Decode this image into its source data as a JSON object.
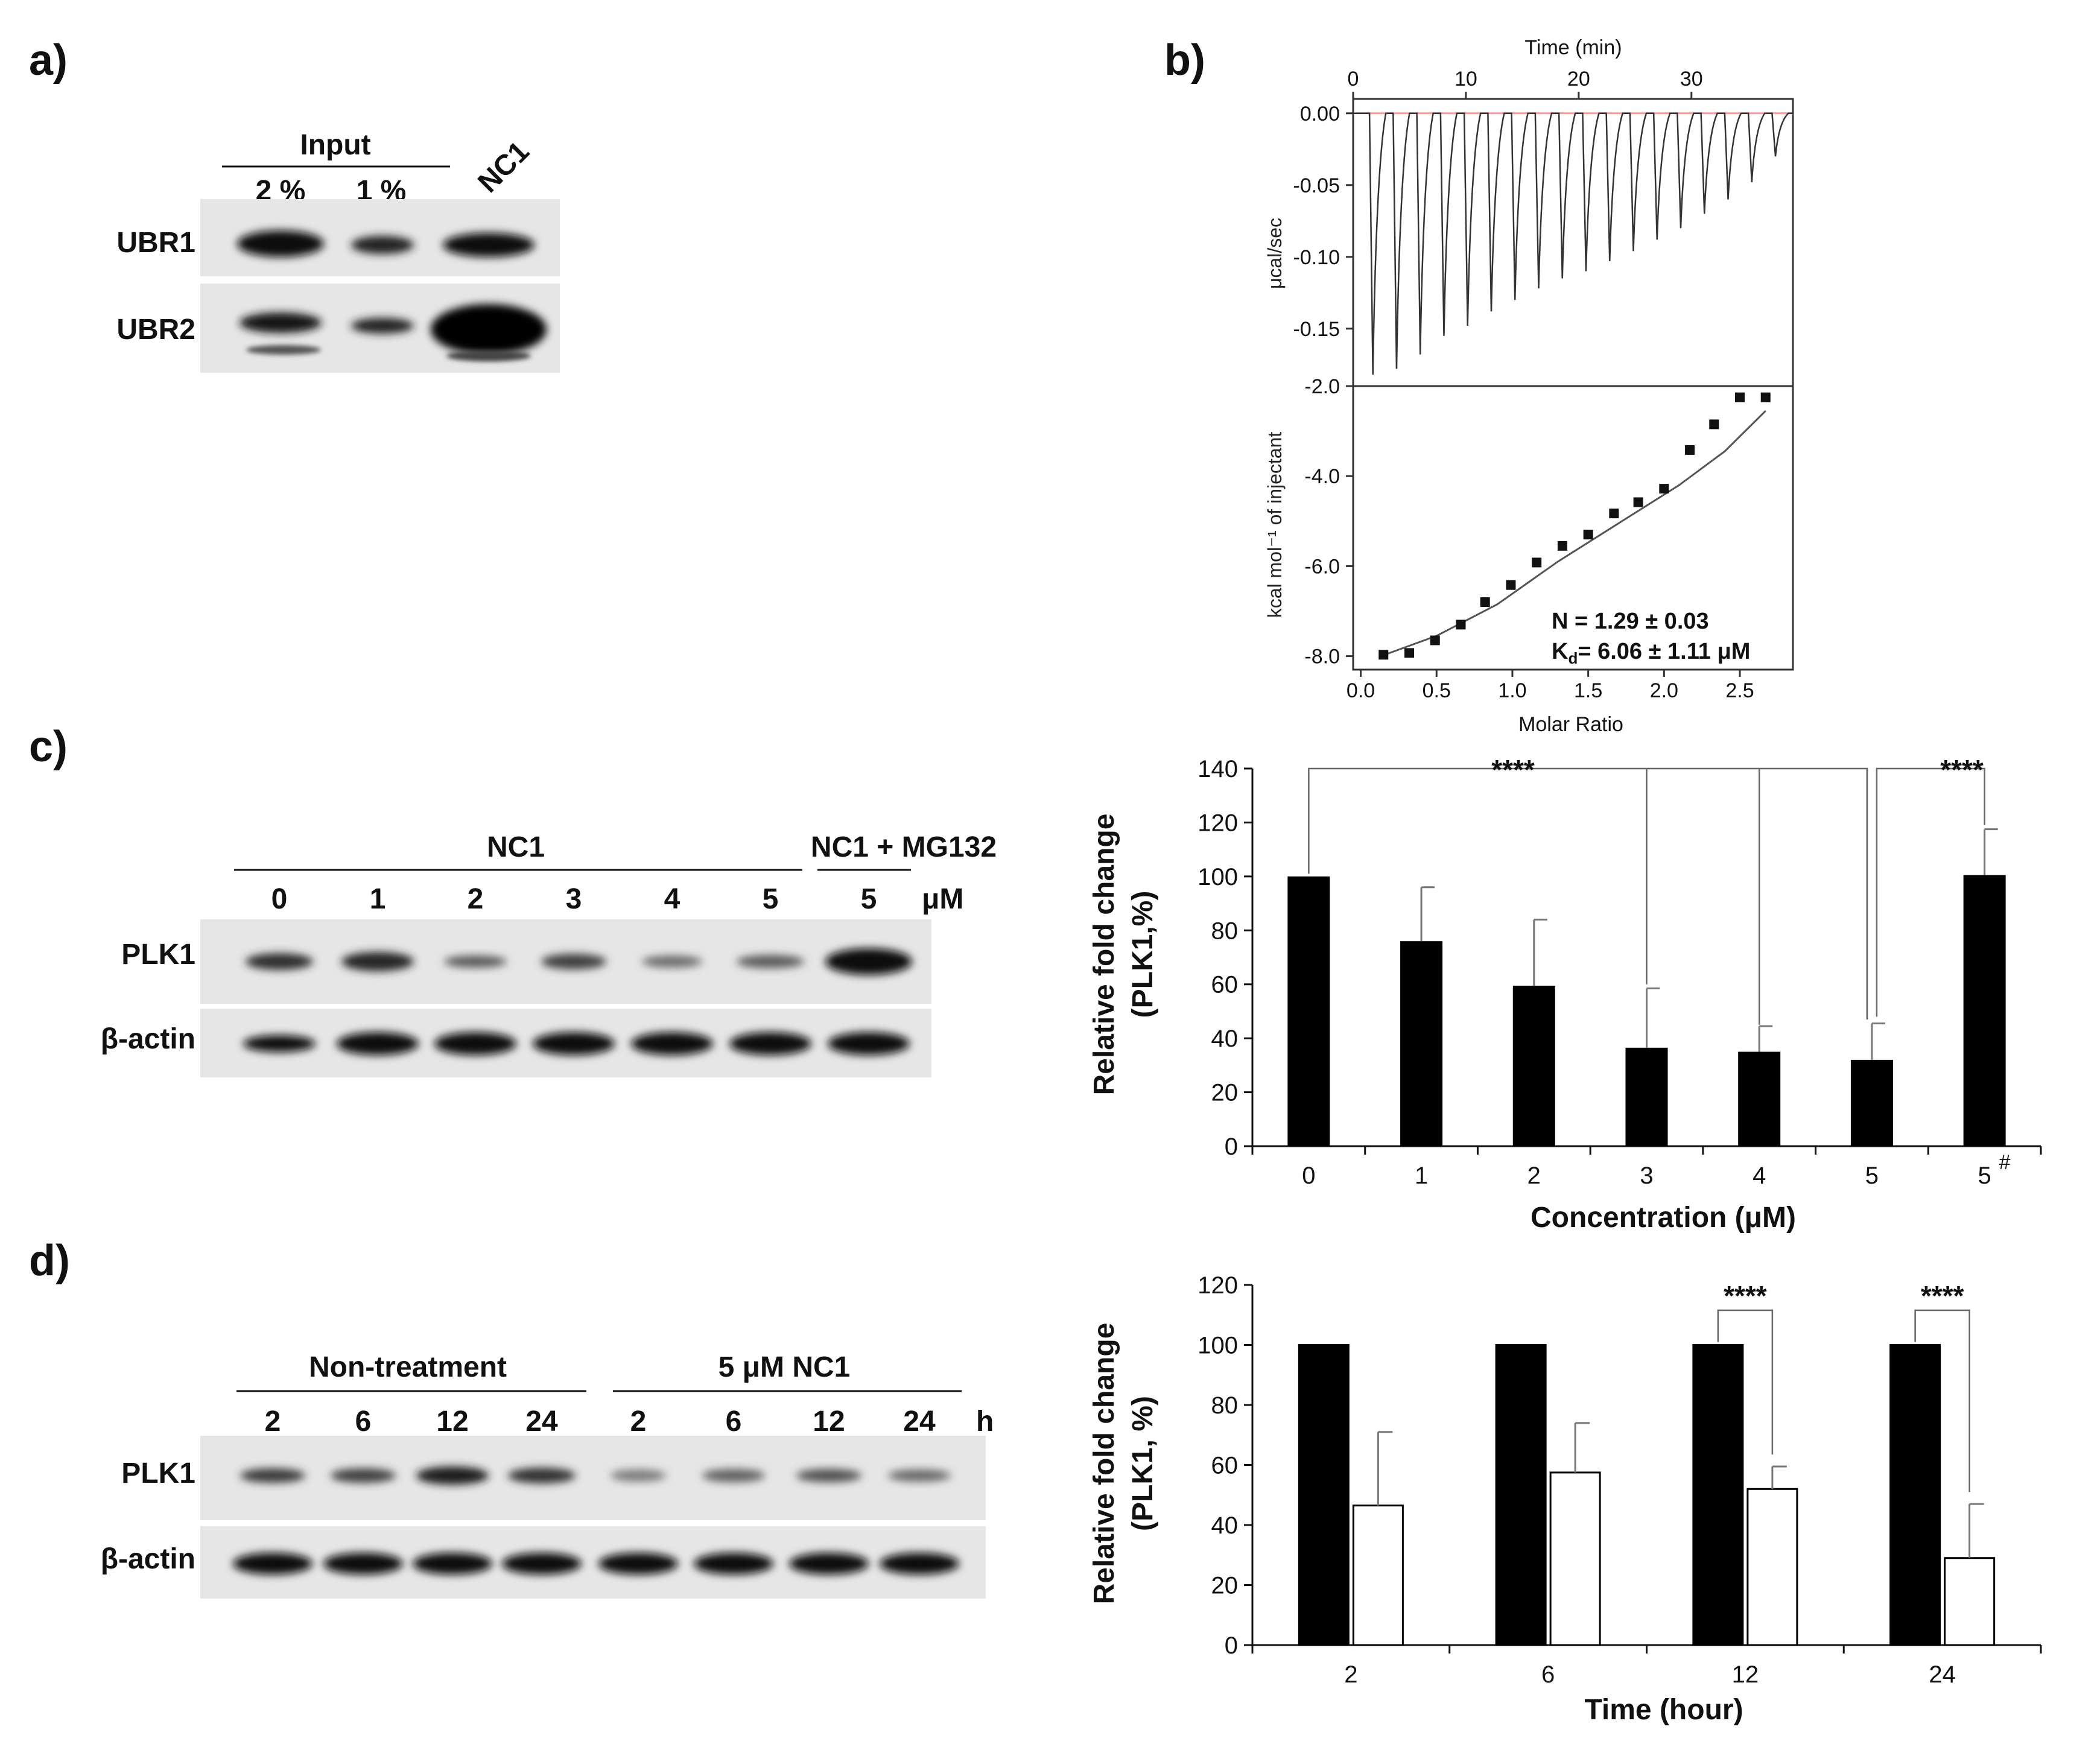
{
  "panels": {
    "a": "a)",
    "b": "b)",
    "c": "c)",
    "d": "d)"
  },
  "blot_a": {
    "input_label": "Input",
    "lanes": [
      "2 %",
      "1 %",
      "NC1"
    ],
    "rows": [
      "UBR1",
      "UBR2"
    ]
  },
  "blot_c": {
    "group1": "NC1",
    "group2": "NC1 + MG132",
    "lanes": [
      "0",
      "1",
      "2",
      "3",
      "4",
      "5",
      "5"
    ],
    "unit": "μM",
    "rows": [
      "PLK1",
      "β-actin"
    ]
  },
  "blot_d": {
    "group1": "Non-treatment",
    "group2": "5 μM NC1",
    "lanes": [
      "2",
      "6",
      "12",
      "24",
      "2",
      "6",
      "12",
      "24"
    ],
    "unit": "h",
    "rows": [
      "PLK1",
      "β-actin"
    ]
  },
  "chart_data": [
    {
      "type": "line",
      "id": "itc_raw",
      "title": "Time (min)",
      "xlabel": "Time (min)",
      "ylabel": "μcal/sec",
      "x_ticks": [
        "0",
        "10",
        "20",
        "30"
      ],
      "xlim": [
        0,
        39
      ],
      "y_ticks": [
        "0.00",
        "-0.05",
        "-0.10",
        "-0.15"
      ],
      "ylim": [
        -0.19,
        0.01
      ],
      "injection_times": [
        1.5,
        3.6,
        5.7,
        7.8,
        9.9,
        12.0,
        14.1,
        16.2,
        18.3,
        20.4,
        22.5,
        24.6,
        26.7,
        28.8,
        30.9,
        33.0,
        35.1,
        37.2
      ],
      "peak_values": [
        -0.182,
        -0.178,
        -0.168,
        -0.155,
        -0.148,
        -0.138,
        -0.13,
        -0.122,
        -0.115,
        -0.11,
        -0.103,
        -0.096,
        -0.088,
        -0.08,
        -0.07,
        -0.06,
        -0.048,
        -0.03
      ]
    },
    {
      "type": "scatter",
      "id": "itc_fit",
      "xlabel": "Molar Ratio",
      "ylabel": "kcal mol⁻¹ of injectant",
      "x_ticks": [
        "0.0",
        "0.5",
        "1.0",
        "1.5",
        "2.0",
        "2.5"
      ],
      "xlim": [
        -0.05,
        2.85
      ],
      "y_ticks": [
        "-2.0",
        "-4.0",
        "-6.0",
        "-8.0"
      ],
      "ylim": [
        -8.3,
        -2.0
      ],
      "x": [
        0.15,
        0.32,
        0.49,
        0.66,
        0.82,
        0.99,
        1.16,
        1.33,
        1.5,
        1.67,
        1.83,
        2.0,
        2.17,
        2.33,
        2.5,
        2.67
      ],
      "y": [
        -7.97,
        -7.93,
        -7.65,
        -7.3,
        -6.8,
        -6.42,
        -5.92,
        -5.55,
        -5.3,
        -4.83,
        -4.58,
        -4.28,
        -3.42,
        -2.85,
        -2.25,
        -2.25
      ],
      "annotation_n": "N = 1.29 ± 0.03",
      "annotation_kd": "K",
      "annotation_kd_sub": "d",
      "annotation_kd_rest": "= 6.06 ± 1.11 μM"
    },
    {
      "type": "bar",
      "id": "chart_c",
      "xlabel": "Concentration (μM)",
      "ylabel": "Relative fold change",
      "ylabel2": "(PLK1,%)",
      "categories": [
        "0",
        "1",
        "2",
        "3",
        "4",
        "5",
        "5"
      ],
      "category_mark": "#",
      "values": [
        100,
        76,
        59.5,
        36.5,
        35,
        32,
        100.5
      ],
      "errors": [
        0,
        20,
        24.5,
        22,
        9.5,
        13.5,
        17
      ],
      "ylim": [
        0,
        140
      ],
      "y_ticks": [
        "0",
        "20",
        "40",
        "60",
        "80",
        "100",
        "120",
        "140"
      ],
      "significance": "****",
      "significance2": "****"
    },
    {
      "type": "bar",
      "id": "chart_d",
      "xlabel": "Time (hour)",
      "ylabel": "Relative fold change",
      "ylabel2": "(PLK1, %)",
      "categories": [
        "2",
        "6",
        "12",
        "24"
      ],
      "series": [
        {
          "name": "Non-treatment",
          "values": [
            100,
            100,
            100,
            100
          ],
          "errors": [
            0,
            0,
            0,
            0
          ],
          "color": "#000000"
        },
        {
          "name": "5 μM NC1",
          "values": [
            46.5,
            57.5,
            52,
            29
          ],
          "errors": [
            24.5,
            16.5,
            7.5,
            18
          ],
          "color": "#ffffff"
        }
      ],
      "ylim": [
        0,
        120
      ],
      "y_ticks": [
        "0",
        "20",
        "40",
        "60",
        "80",
        "100",
        "120"
      ],
      "significance": "****",
      "significance2": "****"
    }
  ]
}
